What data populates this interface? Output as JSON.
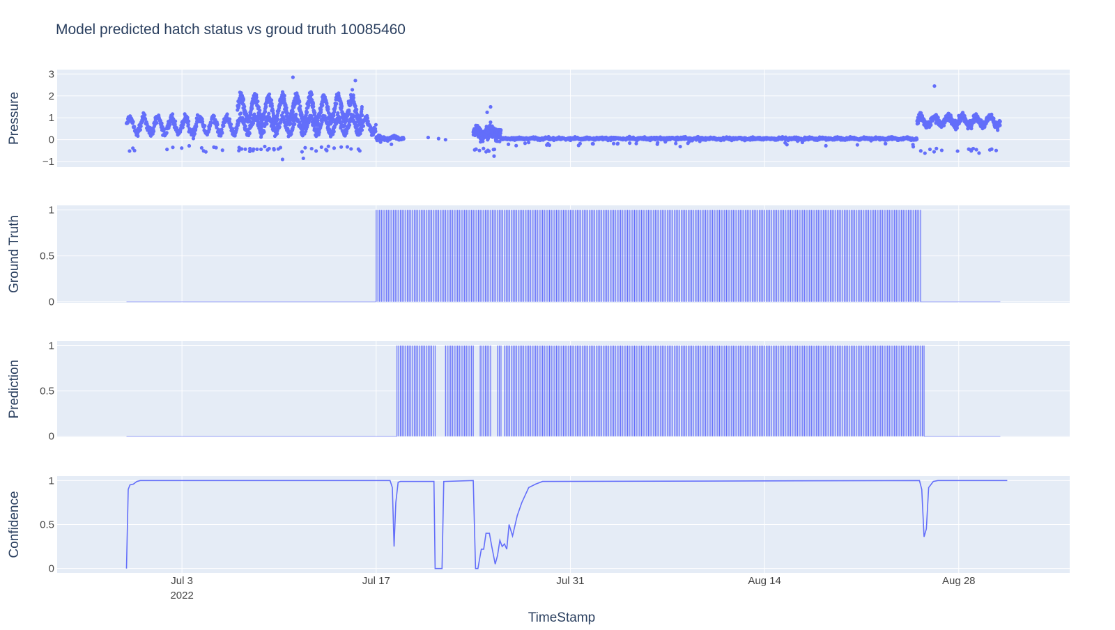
{
  "title": "Model predicted hatch status vs groud truth 10085460",
  "colors": {
    "plot_bg": "#e5ecf6",
    "grid": "#ffffff",
    "trace": "#636efa",
    "text": "#2a3f5f",
    "tick_text": "#444444"
  },
  "chart_data": [
    {
      "type": "scatter",
      "ylabel": "Pressure",
      "ylim": [
        -1.25,
        3.2
      ],
      "yticks": [
        -1,
        0,
        1,
        2,
        3
      ],
      "ytick_labels": [
        "−1",
        "0",
        "1",
        "2",
        "3"
      ],
      "segments": [
        {
          "start": "2022-06-29",
          "end": "2022-07-17",
          "base": 0.65,
          "amp": 0.35,
          "noise": 0.2,
          "count": 900,
          "outlier_low": -0.4
        },
        {
          "start": "2022-07-07",
          "end": "2022-07-16",
          "base": 1.4,
          "amp": 0.55,
          "noise": 0.25,
          "count": 700,
          "outlier_low": -0.4
        },
        {
          "start": "2022-07-17",
          "end": "2022-07-19",
          "base": 0.08,
          "amp": 0.05,
          "noise": 0.07,
          "count": 120,
          "outlier_low": -0.1
        },
        {
          "start": "2022-07-24",
          "end": "2022-07-26",
          "base": 0.3,
          "amp": 0.1,
          "noise": 0.3,
          "count": 220,
          "outlier_low": -0.5
        },
        {
          "start": "2022-07-26",
          "end": "2022-08-25",
          "base": 0.05,
          "amp": 0.02,
          "noise": 0.06,
          "count": 1400,
          "outlier_low": -0.15
        },
        {
          "start": "2022-08-25",
          "end": "2022-08-31",
          "base": 0.85,
          "amp": 0.2,
          "noise": 0.18,
          "count": 500,
          "outlier_low": -0.5
        }
      ],
      "sparse_points": [
        {
          "x": "2022-07-20 18:00",
          "y": 0.1
        },
        {
          "x": "2022-07-21 12:00",
          "y": 0.05
        },
        {
          "x": "2022-07-22 00:00",
          "y": 0.0
        },
        {
          "x": "2022-07-25 06:00",
          "y": 1.5
        },
        {
          "x": "2022-07-25 00:00",
          "y": 1.25
        },
        {
          "x": "2022-07-11 00:00",
          "y": 2.85
        },
        {
          "x": "2022-07-15 12:00",
          "y": 2.7
        },
        {
          "x": "2022-08-26 06:00",
          "y": 2.45
        },
        {
          "x": "2022-07-10 06:00",
          "y": -0.9
        },
        {
          "x": "2022-07-11 18:00",
          "y": -0.85
        },
        {
          "x": "2022-07-25 12:00",
          "y": -0.75
        }
      ]
    },
    {
      "type": "bar",
      "ylabel": "Ground Truth",
      "ylim": [
        -0.01,
        1.05
      ],
      "yticks": [
        0,
        0.5,
        1
      ],
      "ytick_labels": [
        "0",
        "0.5",
        "1"
      ],
      "on_intervals": [
        [
          "2022-07-17",
          "2022-08-25 06:00"
        ]
      ],
      "off_intervals": [
        [
          "2022-06-29",
          "2022-07-17"
        ],
        [
          "2022-08-25 06:00",
          "2022-08-31"
        ]
      ]
    },
    {
      "type": "bar",
      "ylabel": "Prediction",
      "ylim": [
        -0.01,
        1.05
      ],
      "yticks": [
        0,
        0.5,
        1
      ],
      "ytick_labels": [
        "0",
        "0.5",
        "1"
      ],
      "on_intervals": [
        [
          "2022-07-18 12:00",
          "2022-07-21 06:00"
        ],
        [
          "2022-07-22 00:00",
          "2022-07-24 00:00"
        ],
        [
          "2022-07-24 12:00",
          "2022-07-25 06:00"
        ],
        [
          "2022-07-25 18:00",
          "2022-07-26 00:00"
        ],
        [
          "2022-07-26 06:00",
          "2022-08-25 12:00"
        ]
      ],
      "off_intervals": [
        [
          "2022-06-29",
          "2022-07-18 12:00"
        ],
        [
          "2022-08-25 12:00",
          "2022-08-31"
        ]
      ]
    },
    {
      "type": "line",
      "ylabel": "Confidence",
      "ylim": [
        -0.05,
        1.05
      ],
      "yticks": [
        0,
        0.5,
        1
      ],
      "ytick_labels": [
        "0",
        "0.5",
        "1"
      ],
      "x": [
        "2022-06-29 00:00",
        "2022-06-29 03:00",
        "2022-06-29 06:00",
        "2022-06-29 12:00",
        "2022-06-29 18:00",
        "2022-06-30 00:00",
        "2022-07-18 00:00",
        "2022-07-18 04:00",
        "2022-07-18 07:00",
        "2022-07-18 10:00",
        "2022-07-18 14:00",
        "2022-07-18 18:00",
        "2022-07-21 04:00",
        "2022-07-21 06:00",
        "2022-07-21 18:00",
        "2022-07-21 21:00",
        "2022-07-24 00:00",
        "2022-07-24 04:00",
        "2022-07-24 08:00",
        "2022-07-24 14:00",
        "2022-07-24 18:00",
        "2022-07-24 22:00",
        "2022-07-25 04:00",
        "2022-07-25 08:00",
        "2022-07-25 14:00",
        "2022-07-25 18:00",
        "2022-07-25 22:00",
        "2022-07-26 02:00",
        "2022-07-26 06:00",
        "2022-07-26 10:00",
        "2022-07-26 14:00",
        "2022-07-26 20:00",
        "2022-07-27 04:00",
        "2022-07-27 12:00",
        "2022-07-28 00:00",
        "2022-07-28 12:00",
        "2022-07-29 00:00",
        "2022-08-25 04:00",
        "2022-08-25 08:00",
        "2022-08-25 12:00",
        "2022-08-25 16:00",
        "2022-08-25 20:00",
        "2022-08-26 04:00",
        "2022-08-26 12:00",
        "2022-08-31 12:00"
      ],
      "values": [
        0.0,
        0.9,
        0.95,
        0.96,
        0.99,
        1.0,
        1.0,
        0.92,
        0.25,
        0.75,
        0.98,
        0.99,
        0.99,
        0.0,
        0.0,
        0.99,
        1.0,
        0.0,
        0.0,
        0.22,
        0.22,
        0.4,
        0.4,
        0.25,
        0.05,
        0.15,
        0.32,
        0.25,
        0.28,
        0.22,
        0.5,
        0.37,
        0.6,
        0.75,
        0.92,
        0.96,
        0.99,
        1.0,
        0.9,
        0.36,
        0.45,
        0.92,
        0.99,
        1.0,
        1.0
      ]
    }
  ],
  "xaxis": {
    "title": "TimeStamp",
    "range": [
      "2022-06-24",
      "2022-09-05"
    ],
    "ticks": [
      {
        "x": "2022-07-03",
        "label": "Jul 3",
        "sublabel": "2022"
      },
      {
        "x": "2022-07-17",
        "label": "Jul 17",
        "sublabel": ""
      },
      {
        "x": "2022-07-31",
        "label": "Jul 31",
        "sublabel": ""
      },
      {
        "x": "2022-08-14",
        "label": "Aug 14",
        "sublabel": ""
      },
      {
        "x": "2022-08-28",
        "label": "Aug 28",
        "sublabel": ""
      }
    ]
  }
}
